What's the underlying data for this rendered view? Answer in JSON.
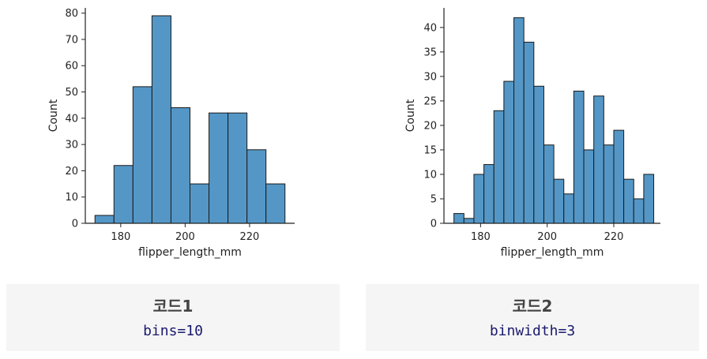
{
  "chart_data": [
    {
      "type": "bar",
      "xlabel": "flipper_length_mm",
      "ylabel": "Count",
      "xlim": [
        169,
        234
      ],
      "ylim": [
        0,
        82
      ],
      "xticks": [
        180,
        200,
        220
      ],
      "yticks": [
        0,
        10,
        20,
        30,
        40,
        50,
        60,
        70,
        80
      ],
      "bin_edges": [
        172,
        177.9,
        183.8,
        189.7,
        195.6,
        201.5,
        207.4,
        213.3,
        219.2,
        225.1,
        231
      ],
      "values": [
        3,
        22,
        52,
        79,
        44,
        15,
        42,
        42,
        28,
        15
      ],
      "bar_color": "#5497c7",
      "edge_color": "#1a1a1a",
      "grid": false
    },
    {
      "type": "bar",
      "xlabel": "flipper_length_mm",
      "ylabel": "Count",
      "xlim": [
        169,
        234
      ],
      "ylim": [
        0,
        44
      ],
      "xticks": [
        180,
        200,
        220
      ],
      "yticks": [
        0,
        5,
        10,
        15,
        20,
        25,
        30,
        35,
        40
      ],
      "bin_edges": [
        172,
        175,
        178,
        181,
        184,
        187,
        190,
        193,
        196,
        199,
        202,
        205,
        208,
        211,
        214,
        217,
        220,
        223,
        226,
        229,
        232
      ],
      "values": [
        2,
        1,
        10,
        12,
        23,
        29,
        42,
        37,
        28,
        16,
        9,
        6,
        27,
        15,
        26,
        16,
        19,
        9,
        5,
        10
      ],
      "bar_color": "#5497c7",
      "edge_color": "#1a1a1a",
      "grid": false
    }
  ],
  "captions": [
    {
      "title": "코드1",
      "code": "bins=10"
    },
    {
      "title": "코드2",
      "code": "binwidth=3"
    }
  ]
}
